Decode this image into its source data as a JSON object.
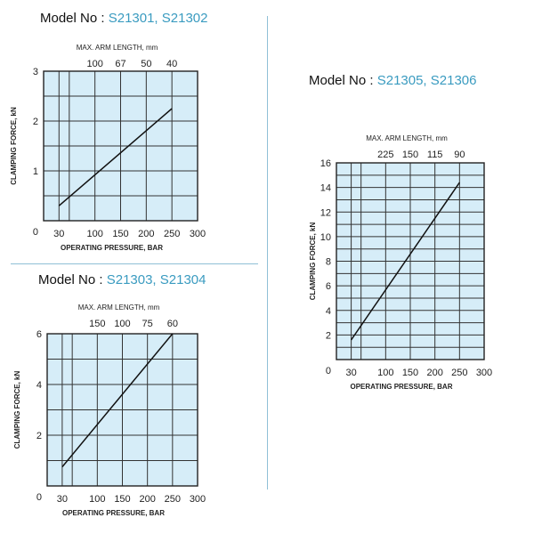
{
  "models": [
    {
      "prefix": "Model No",
      "sep": " : ",
      "numbers": "S21301, S21302"
    },
    {
      "prefix": "Model No",
      "sep": " : ",
      "numbers": "S21303, S21304"
    },
    {
      "prefix": "Model No",
      "sep": " : ",
      "numbers": "S21305, S21306"
    }
  ],
  "chart_data": [
    {
      "type": "line",
      "top_axis_title": "MAX. ARM LENGTH, mm",
      "top_tick_labels": [
        "100",
        "67",
        "50",
        "40"
      ],
      "top_tick_x": [
        100,
        150,
        200,
        250
      ],
      "xlabel": "OPERATING PRESSURE, BAR",
      "ylabel": "CLAMPING FORCE, kN",
      "x_tick_labels": [
        "30",
        "100",
        "150",
        "200",
        "250",
        "300"
      ],
      "x_ticks": [
        30,
        100,
        150,
        200,
        250,
        300
      ],
      "y_ticks": [
        1,
        2,
        3
      ],
      "xlim": [
        0,
        300
      ],
      "ylim": [
        0,
        3
      ],
      "origin_label": "0",
      "grid": true,
      "series": [
        {
          "x": [
            30,
            250
          ],
          "y": [
            0.3,
            2.25
          ]
        }
      ]
    },
    {
      "type": "line",
      "top_axis_title": "MAX. ARM LENGTH, mm",
      "top_tick_labels": [
        "150",
        "100",
        "75",
        "60"
      ],
      "top_tick_x": [
        100,
        150,
        200,
        250
      ],
      "xlabel": "OPERATING PRESSURE, BAR",
      "ylabel": "CLAMPING FORCE, kN",
      "x_tick_labels": [
        "30",
        "100",
        "150",
        "200",
        "250",
        "300"
      ],
      "x_ticks": [
        30,
        100,
        150,
        200,
        250,
        300
      ],
      "y_ticks": [
        2,
        4,
        6
      ],
      "xlim": [
        0,
        300
      ],
      "ylim": [
        0,
        6
      ],
      "origin_label": "0",
      "grid": true,
      "series": [
        {
          "x": [
            30,
            250
          ],
          "y": [
            0.75,
            6.0
          ]
        }
      ]
    },
    {
      "type": "line",
      "top_axis_title": "MAX. ARM LENGTH, mm",
      "top_tick_labels": [
        "225",
        "150",
        "115",
        "90"
      ],
      "top_tick_x": [
        100,
        150,
        200,
        250
      ],
      "xlabel": "OPERATING PRESSURE, BAR",
      "ylabel": "CLAMPING FORCE, kN",
      "x_tick_labels": [
        "30",
        "100",
        "150",
        "200",
        "250",
        "300"
      ],
      "x_ticks": [
        30,
        100,
        150,
        200,
        250,
        300
      ],
      "y_ticks": [
        2,
        4,
        6,
        8,
        10,
        12,
        14,
        16
      ],
      "xlim": [
        0,
        300
      ],
      "ylim": [
        0,
        16
      ],
      "origin_label": "0",
      "grid": true,
      "series": [
        {
          "x": [
            30,
            250
          ],
          "y": [
            1.6,
            14.4
          ]
        }
      ]
    }
  ]
}
